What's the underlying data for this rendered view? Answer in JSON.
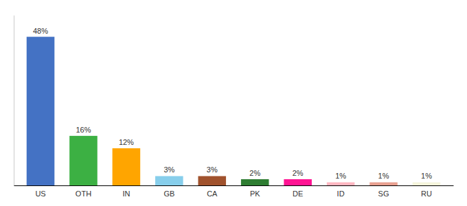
{
  "chart_data": {
    "type": "bar",
    "categories": [
      "US",
      "OTH",
      "IN",
      "GB",
      "CA",
      "PK",
      "DE",
      "ID",
      "SG",
      "RU"
    ],
    "values": [
      48,
      16,
      12,
      3,
      3,
      2,
      2,
      1,
      1,
      1
    ],
    "value_labels": [
      "48%",
      "16%",
      "12%",
      "3%",
      "3%",
      "2%",
      "2%",
      "1%",
      "1%",
      "1%"
    ],
    "colors": [
      "#4472C4",
      "#3CB043",
      "#FFA500",
      "#87CEEB",
      "#A0522D",
      "#2E7D32",
      "#FF1493",
      "#FFB6C1",
      "#E8A090",
      "#F5F5DC"
    ],
    "ylim": [
      0,
      55
    ],
    "data_labels": true,
    "tick_labels": "x",
    "grid": false
  }
}
